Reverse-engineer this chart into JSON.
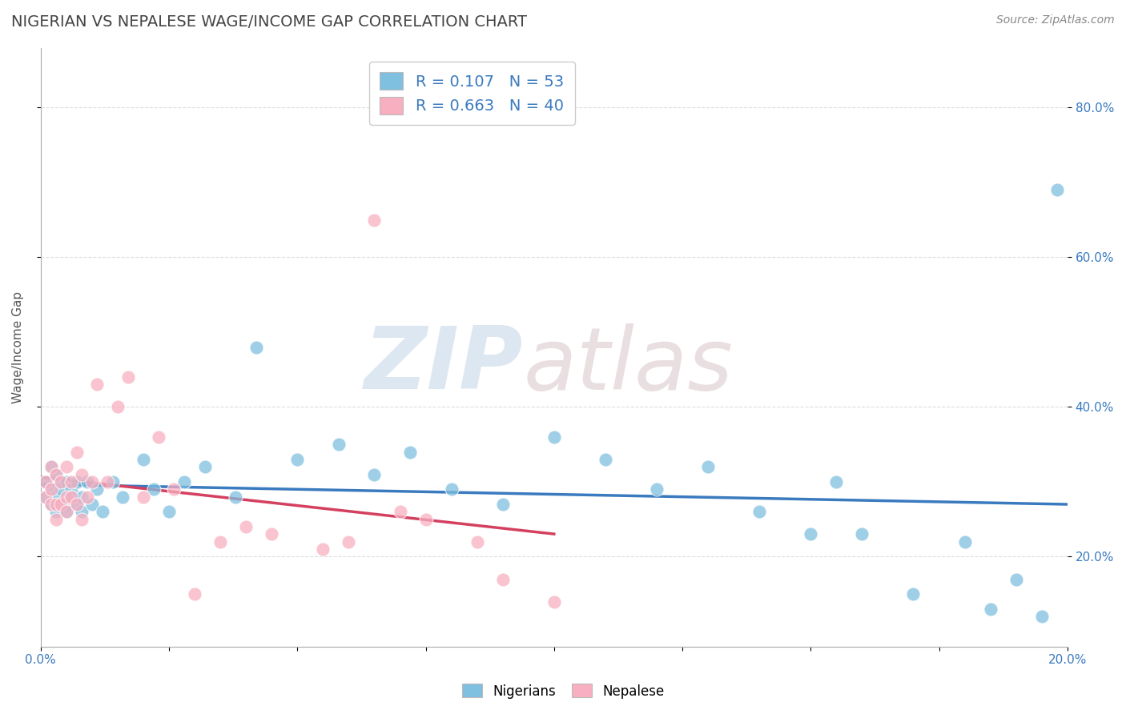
{
  "title": "NIGERIAN VS NEPALESE WAGE/INCOME GAP CORRELATION CHART",
  "source_text": "Source: ZipAtlas.com",
  "ylabel": "Wage/Income Gap",
  "xlim": [
    0.0,
    0.2
  ],
  "ylim": [
    0.08,
    0.88
  ],
  "yticks": [
    0.2,
    0.4,
    0.6,
    0.8
  ],
  "ytick_labels": [
    "20.0%",
    "40.0%",
    "60.0%",
    "80.0%"
  ],
  "xticks": [
    0.0,
    0.025,
    0.05,
    0.075,
    0.1,
    0.125,
    0.15,
    0.175,
    0.2
  ],
  "xtick_labels": [
    "0.0%",
    "",
    "",
    "",
    "",
    "",
    "",
    "",
    "20.0%"
  ],
  "nigerian_R": 0.107,
  "nigerian_N": 53,
  "nepalese_R": 0.663,
  "nepalese_N": 40,
  "nigerian_color": "#7fbfdf",
  "nepalese_color": "#f8afc0",
  "nigerian_line_color": "#3a7abf",
  "nepalese_line_color": "#d44060",
  "background_color": "#ffffff",
  "grid_color": "#dddddd",
  "title_color": "#444444",
  "nigerian_x": [
    0.001,
    0.001,
    0.002,
    0.002,
    0.002,
    0.003,
    0.003,
    0.003,
    0.004,
    0.004,
    0.004,
    0.005,
    0.005,
    0.005,
    0.006,
    0.006,
    0.007,
    0.007,
    0.008,
    0.008,
    0.009,
    0.01,
    0.011,
    0.012,
    0.014,
    0.016,
    0.02,
    0.022,
    0.025,
    0.028,
    0.032,
    0.038,
    0.042,
    0.05,
    0.058,
    0.065,
    0.072,
    0.08,
    0.09,
    0.1,
    0.11,
    0.12,
    0.13,
    0.14,
    0.15,
    0.155,
    0.16,
    0.17,
    0.18,
    0.185,
    0.19,
    0.195,
    0.198
  ],
  "nigerian_y": [
    0.3,
    0.28,
    0.32,
    0.29,
    0.27,
    0.31,
    0.28,
    0.26,
    0.3,
    0.29,
    0.27,
    0.3,
    0.27,
    0.26,
    0.29,
    0.28,
    0.3,
    0.27,
    0.26,
    0.28,
    0.3,
    0.27,
    0.29,
    0.26,
    0.3,
    0.28,
    0.33,
    0.29,
    0.26,
    0.3,
    0.32,
    0.28,
    0.48,
    0.33,
    0.35,
    0.31,
    0.34,
    0.29,
    0.27,
    0.36,
    0.33,
    0.29,
    0.32,
    0.26,
    0.23,
    0.3,
    0.23,
    0.15,
    0.22,
    0.13,
    0.17,
    0.12,
    0.69
  ],
  "nepalese_x": [
    0.001,
    0.001,
    0.002,
    0.002,
    0.002,
    0.003,
    0.003,
    0.003,
    0.004,
    0.004,
    0.005,
    0.005,
    0.005,
    0.006,
    0.006,
    0.007,
    0.007,
    0.008,
    0.008,
    0.009,
    0.01,
    0.011,
    0.013,
    0.015,
    0.017,
    0.02,
    0.023,
    0.026,
    0.03,
    0.035,
    0.04,
    0.045,
    0.055,
    0.06,
    0.065,
    0.07,
    0.075,
    0.085,
    0.09,
    0.1
  ],
  "nepalese_y": [
    0.3,
    0.28,
    0.32,
    0.29,
    0.27,
    0.31,
    0.27,
    0.25,
    0.3,
    0.27,
    0.32,
    0.28,
    0.26,
    0.3,
    0.28,
    0.34,
    0.27,
    0.25,
    0.31,
    0.28,
    0.3,
    0.43,
    0.3,
    0.4,
    0.44,
    0.28,
    0.36,
    0.29,
    0.15,
    0.22,
    0.24,
    0.23,
    0.21,
    0.22,
    0.65,
    0.26,
    0.25,
    0.22,
    0.17,
    0.14
  ]
}
